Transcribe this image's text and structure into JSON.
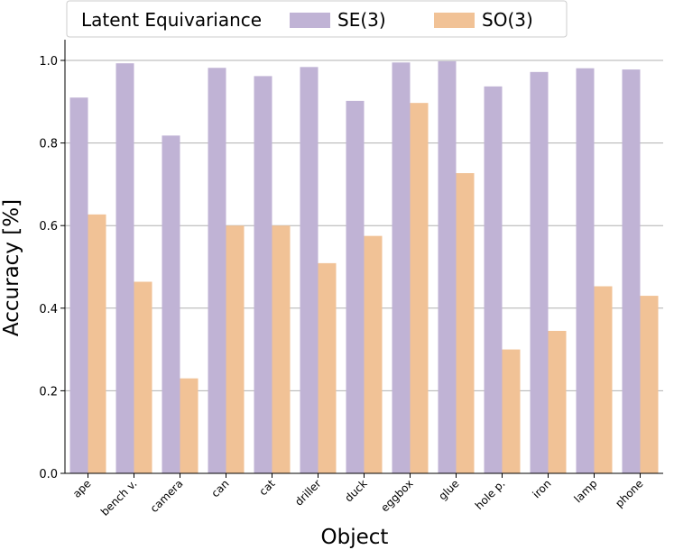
{
  "chart_data": {
    "type": "bar",
    "xlabel": "Object",
    "ylabel": "Accuracy [%]",
    "ylim": [
      0.0,
      1.0
    ],
    "yticks": [
      "0.0",
      "0.2",
      "0.4",
      "0.6",
      "0.8",
      "1.0"
    ],
    "grid": "horizontal",
    "legend": {
      "title": "Latent Equivariance",
      "placement": "top"
    },
    "categories": [
      "ape",
      "bench v.",
      "camera",
      "can",
      "cat",
      "driller",
      "duck",
      "eggbox",
      "glue",
      "hole p.",
      "iron",
      "lamp",
      "phone"
    ],
    "series": [
      {
        "name": "SE(3)",
        "color": "#c0b3d5",
        "values": [
          0.91,
          0.993,
          0.818,
          0.982,
          0.962,
          0.984,
          0.902,
          0.995,
          0.998,
          0.937,
          0.972,
          0.981,
          0.978
        ]
      },
      {
        "name": "SO(3)",
        "color": "#f1c296",
        "values": [
          0.627,
          0.464,
          0.23,
          0.6,
          0.6,
          0.509,
          0.575,
          0.897,
          0.727,
          0.3,
          0.345,
          0.453,
          0.43
        ]
      }
    ]
  }
}
